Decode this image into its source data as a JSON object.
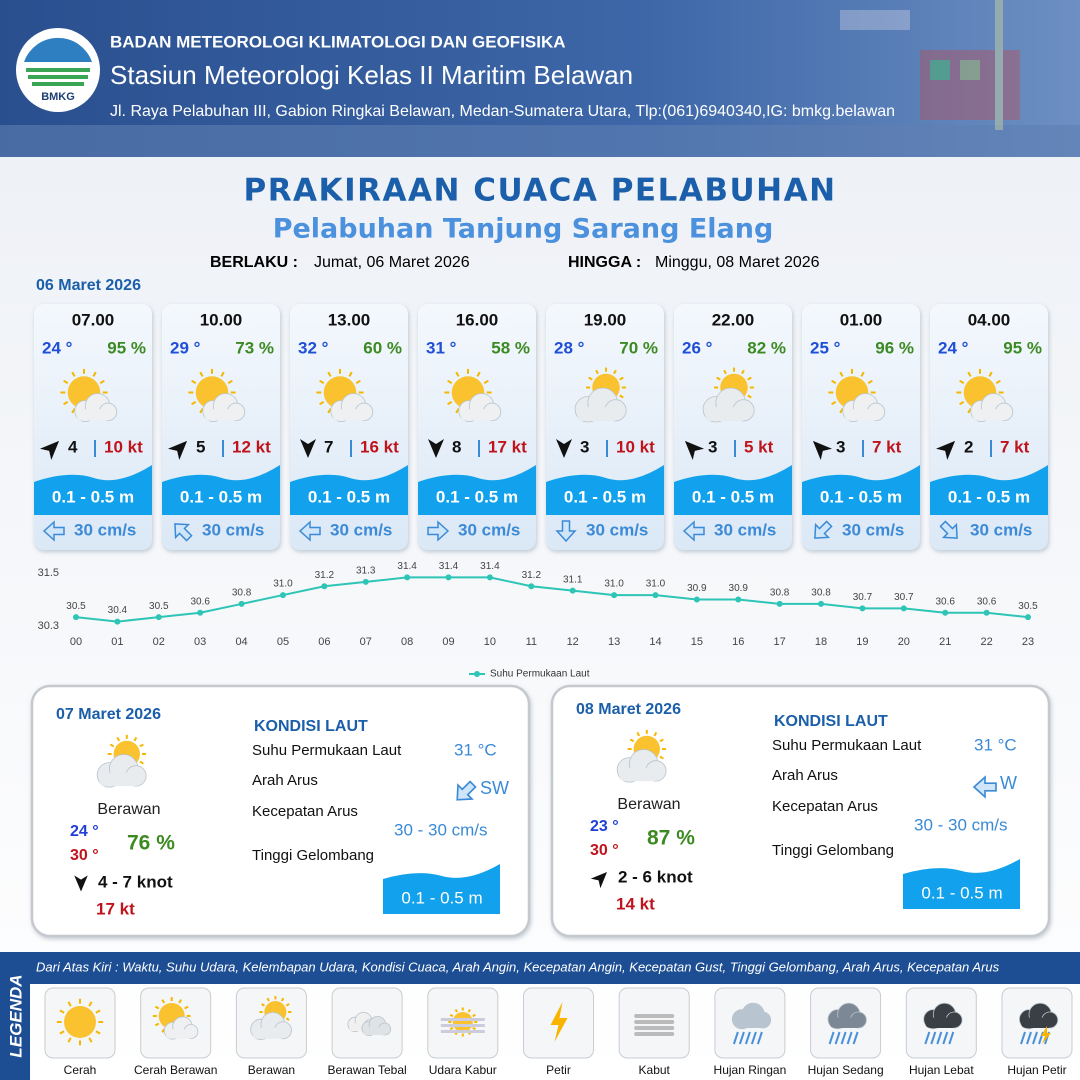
{
  "header": {
    "logo": "BMKG",
    "agency": "BADAN METEOROLOGI KLIMATOLOGI DAN GEOFISIKA",
    "station": "Stasiun Meteorologi Kelas II Maritim Belawan",
    "address": "Jl. Raya Pelabuhan III, Gabion Ringkai Belawan, Medan-Sumatera Utara, Tlp:(061)6940340,IG: bmkg.belawan"
  },
  "title": "PRAKIRAAN CUACA PELABUHAN",
  "subtitle": "Pelabuhan Tanjung Sarang Elang",
  "validity": {
    "from_label": "BERLAKU :",
    "from": "Jumat, 06 Maret 2026",
    "to_label": "HINGGA :",
    "to": "Minggu, 08 Maret 2026"
  },
  "today": {
    "date": "06 Maret 2026",
    "forecasts": [
      {
        "time": "07.00",
        "temp": "24 °",
        "humidity": "95 %",
        "wind_dir": "NE",
        "wind": "4",
        "gust": "10 kt",
        "wave": "0.1 - 0.5 m",
        "current_dir": "W",
        "current": "30 cm/s"
      },
      {
        "time": "10.00",
        "temp": "29 °",
        "humidity": "73 %",
        "wind_dir": "NE",
        "wind": "5",
        "gust": "12 kt",
        "wave": "0.1 - 0.5 m",
        "current_dir": "NW",
        "current": "30 cm/s"
      },
      {
        "time": "13.00",
        "temp": "32 °",
        "humidity": "60 %",
        "wind_dir": "S",
        "wind": "7",
        "gust": "16 kt",
        "wave": "0.1 - 0.5 m",
        "current_dir": "W",
        "current": "30 cm/s"
      },
      {
        "time": "16.00",
        "temp": "31 °",
        "humidity": "58 %",
        "wind_dir": "S",
        "wind": "8",
        "gust": "17 kt",
        "wave": "0.1 - 0.5 m",
        "current_dir": "E",
        "current": "30 cm/s"
      },
      {
        "time": "19.00",
        "temp": "28 °",
        "humidity": "70 %",
        "wind_dir": "S",
        "wind": "3",
        "gust": "10 kt",
        "wave": "0.1 - 0.5 m",
        "current_dir": "S",
        "current": "30 cm/s"
      },
      {
        "time": "22.00",
        "temp": "26 °",
        "humidity": "82 %",
        "wind_dir": "NW",
        "wind": "3",
        "gust": "5 kt",
        "wave": "0.1 - 0.5 m",
        "current_dir": "W",
        "current": "30 cm/s"
      },
      {
        "time": "01.00",
        "temp": "25 °",
        "humidity": "96 %",
        "wind_dir": "NW",
        "wind": "3",
        "gust": "7 kt",
        "wave": "0.1 - 0.5 m",
        "current_dir": "SW",
        "current": "30 cm/s"
      },
      {
        "time": "04.00",
        "temp": "24 °",
        "humidity": "95 %",
        "wind_dir": "NE",
        "wind": "2",
        "gust": "7 kt",
        "wave": "0.1 - 0.5 m",
        "current_dir": "SE",
        "current": "30 cm/s"
      }
    ]
  },
  "chart_data": {
    "type": "line",
    "categories": [
      "00",
      "01",
      "02",
      "03",
      "04",
      "05",
      "06",
      "07",
      "08",
      "09",
      "10",
      "11",
      "12",
      "13",
      "14",
      "15",
      "16",
      "17",
      "18",
      "19",
      "20",
      "21",
      "22",
      "23"
    ],
    "series": [
      {
        "name": "Suhu Permukaan Laut",
        "color": "#2ec4b6",
        "values": [
          30.5,
          30.4,
          30.5,
          30.6,
          30.8,
          31.0,
          31.2,
          31.3,
          31.4,
          31.4,
          31.4,
          31.2,
          31.1,
          31.0,
          31.0,
          30.9,
          30.9,
          30.8,
          30.8,
          30.7,
          30.7,
          30.6,
          30.6,
          30.5
        ],
        "value_labels": [
          "30.5",
          "30.4",
          "30.5",
          "30.6",
          "30.8",
          "31.0",
          "31.2",
          "31.3",
          "31.4",
          "31.4",
          "31.4",
          "31.2",
          "31.1",
          "31.0",
          "31.0",
          "30.9",
          "30.9",
          "30.8",
          "30.8",
          "30.7",
          "30.7",
          "30.6",
          "30.6",
          "30.5"
        ]
      }
    ],
    "ylim": [
      30.3,
      31.5
    ],
    "yticks": [
      30.3,
      31.5
    ],
    "grid": false,
    "legend": "bottom"
  },
  "days": [
    {
      "date": "07 Maret 2026",
      "condition": "Berawan",
      "temp_min": "24 °",
      "temp_max": "30 °",
      "humidity": "76 %",
      "wind_dir": "S",
      "wind": "4  - 7 knot",
      "gust": "17 kt",
      "sea": {
        "heading": "KONDISI LAUT",
        "rows": [
          {
            "label": "Suhu Permukaan Laut",
            "value": "31 °C"
          },
          {
            "label": "Arah Arus",
            "value": "SW"
          },
          {
            "label": "Kecepatan Arus",
            "value": "30 - 30 cm/s"
          },
          {
            "label": "Tinggi Gelombang",
            "value": "0.1 - 0.5 m"
          }
        ]
      }
    },
    {
      "date": "08 Maret 2026",
      "condition": "Berawan",
      "temp_min": "23 °",
      "temp_max": "30 °",
      "humidity": "87 %",
      "wind_dir": "NE",
      "wind": "2  - 6 knot",
      "gust": "14 kt",
      "sea": {
        "heading": "KONDISI LAUT",
        "rows": [
          {
            "label": "Suhu Permukaan Laut",
            "value": "31 °C"
          },
          {
            "label": "Arah Arus",
            "value": "W"
          },
          {
            "label": "Kecepatan Arus",
            "value": "30  - 30 cm/s"
          },
          {
            "label": "Tinggi Gelombang",
            "value": "0.1 - 0.5 m"
          }
        ]
      }
    }
  ],
  "legend": {
    "title": "LEGENDA",
    "description": "Dari Atas Kiri : Waktu, Suhu Udara, Kelembapan Udara, Kondisi Cuaca, Arah Angin, Kecepatan Angin, Kecepatan Gust, Tinggi Gelombang, Arah Arus, Kecepatan Arus",
    "items": [
      "Cerah",
      "Cerah Berawan",
      "Berawan",
      "Berawan Tebal",
      "Udara Kabur",
      "Petir",
      "Kabut",
      "Hujan Ringan",
      "Hujan Sedang",
      "Hujan Lebat",
      "Hujan Petir"
    ]
  }
}
